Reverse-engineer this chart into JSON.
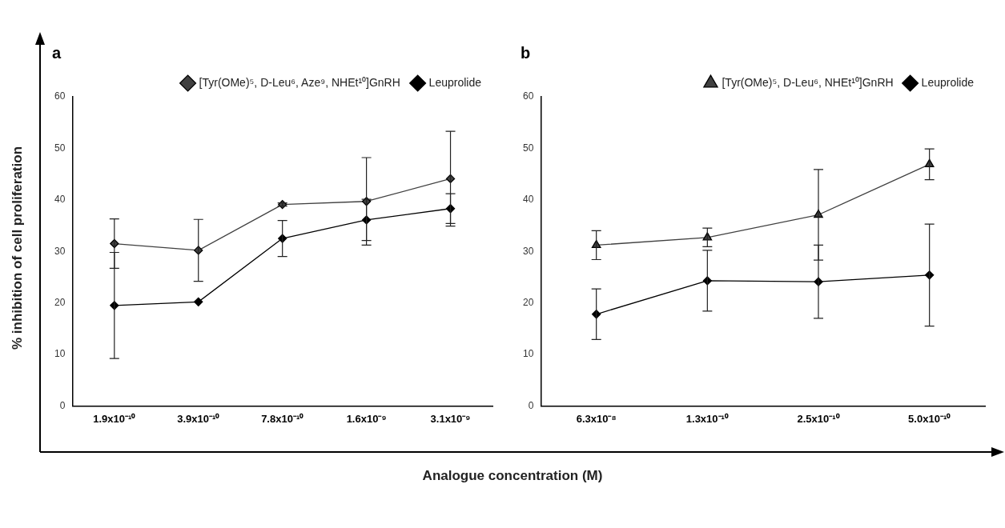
{
  "chart_data": [
    {
      "type": "line",
      "title": "a",
      "ylabel": "% inhibition of cell proliferation",
      "categories": [
        "1.9x10⁻¹⁰",
        "3.9x10⁻¹⁰",
        "7.8x10⁻¹⁰",
        "1.6x10⁻⁹",
        "3.1x10⁻⁹"
      ],
      "ylim": [
        0,
        60
      ],
      "yticks": [
        0,
        10,
        20,
        30,
        40,
        50,
        60
      ],
      "grid": false,
      "legend": "top right",
      "line_style": "solid",
      "series": [
        {
          "name": "[Tyr(OMe)⁵, D-Leu⁶, Aze⁹, NHEt¹⁰]GnRH",
          "color": "#404040",
          "marker": "diamond",
          "values": [
            31.5,
            30.2,
            39.1,
            39.7,
            44.1
          ],
          "errors": [
            4.8,
            6,
            0.3,
            8.5,
            9.2
          ]
        },
        {
          "name": "Leuprolide",
          "color": "#000000",
          "marker": "diamond",
          "values": [
            19.5,
            20.2,
            32.5,
            36.1,
            38.3
          ],
          "errors": [
            10.3,
            null,
            3.5,
            4,
            2.9
          ]
        }
      ]
    },
    {
      "type": "line",
      "title": "b",
      "xlabel": "Analogue  concentration (M)",
      "categories": [
        "6.3x10⁻⁸",
        "1.3x10⁻¹⁰",
        "2.5x10⁻¹⁰",
        "5.0x10⁻¹⁰"
      ],
      "ylim": [
        0,
        60
      ],
      "yticks": [
        0,
        10,
        20,
        30,
        40,
        50,
        60
      ],
      "grid": false,
      "legend": "top right",
      "line_style": "solid",
      "series": [
        {
          "name": "[Tyr(OMe)⁵, D-Leu⁶, NHEt¹⁰]GnRH",
          "color": "#404040",
          "marker": "triangle",
          "values": [
            31.2,
            32.7,
            37.1,
            46.9
          ],
          "errors": [
            2.8,
            1.8,
            8.8,
            3
          ]
        },
        {
          "name": "Leuprolide",
          "color": "#000000",
          "marker": "diamond",
          "values": [
            17.8,
            24.3,
            24.1,
            25.4
          ],
          "errors": [
            4.9,
            5.9,
            7.1,
            9.9
          ]
        }
      ]
    }
  ]
}
